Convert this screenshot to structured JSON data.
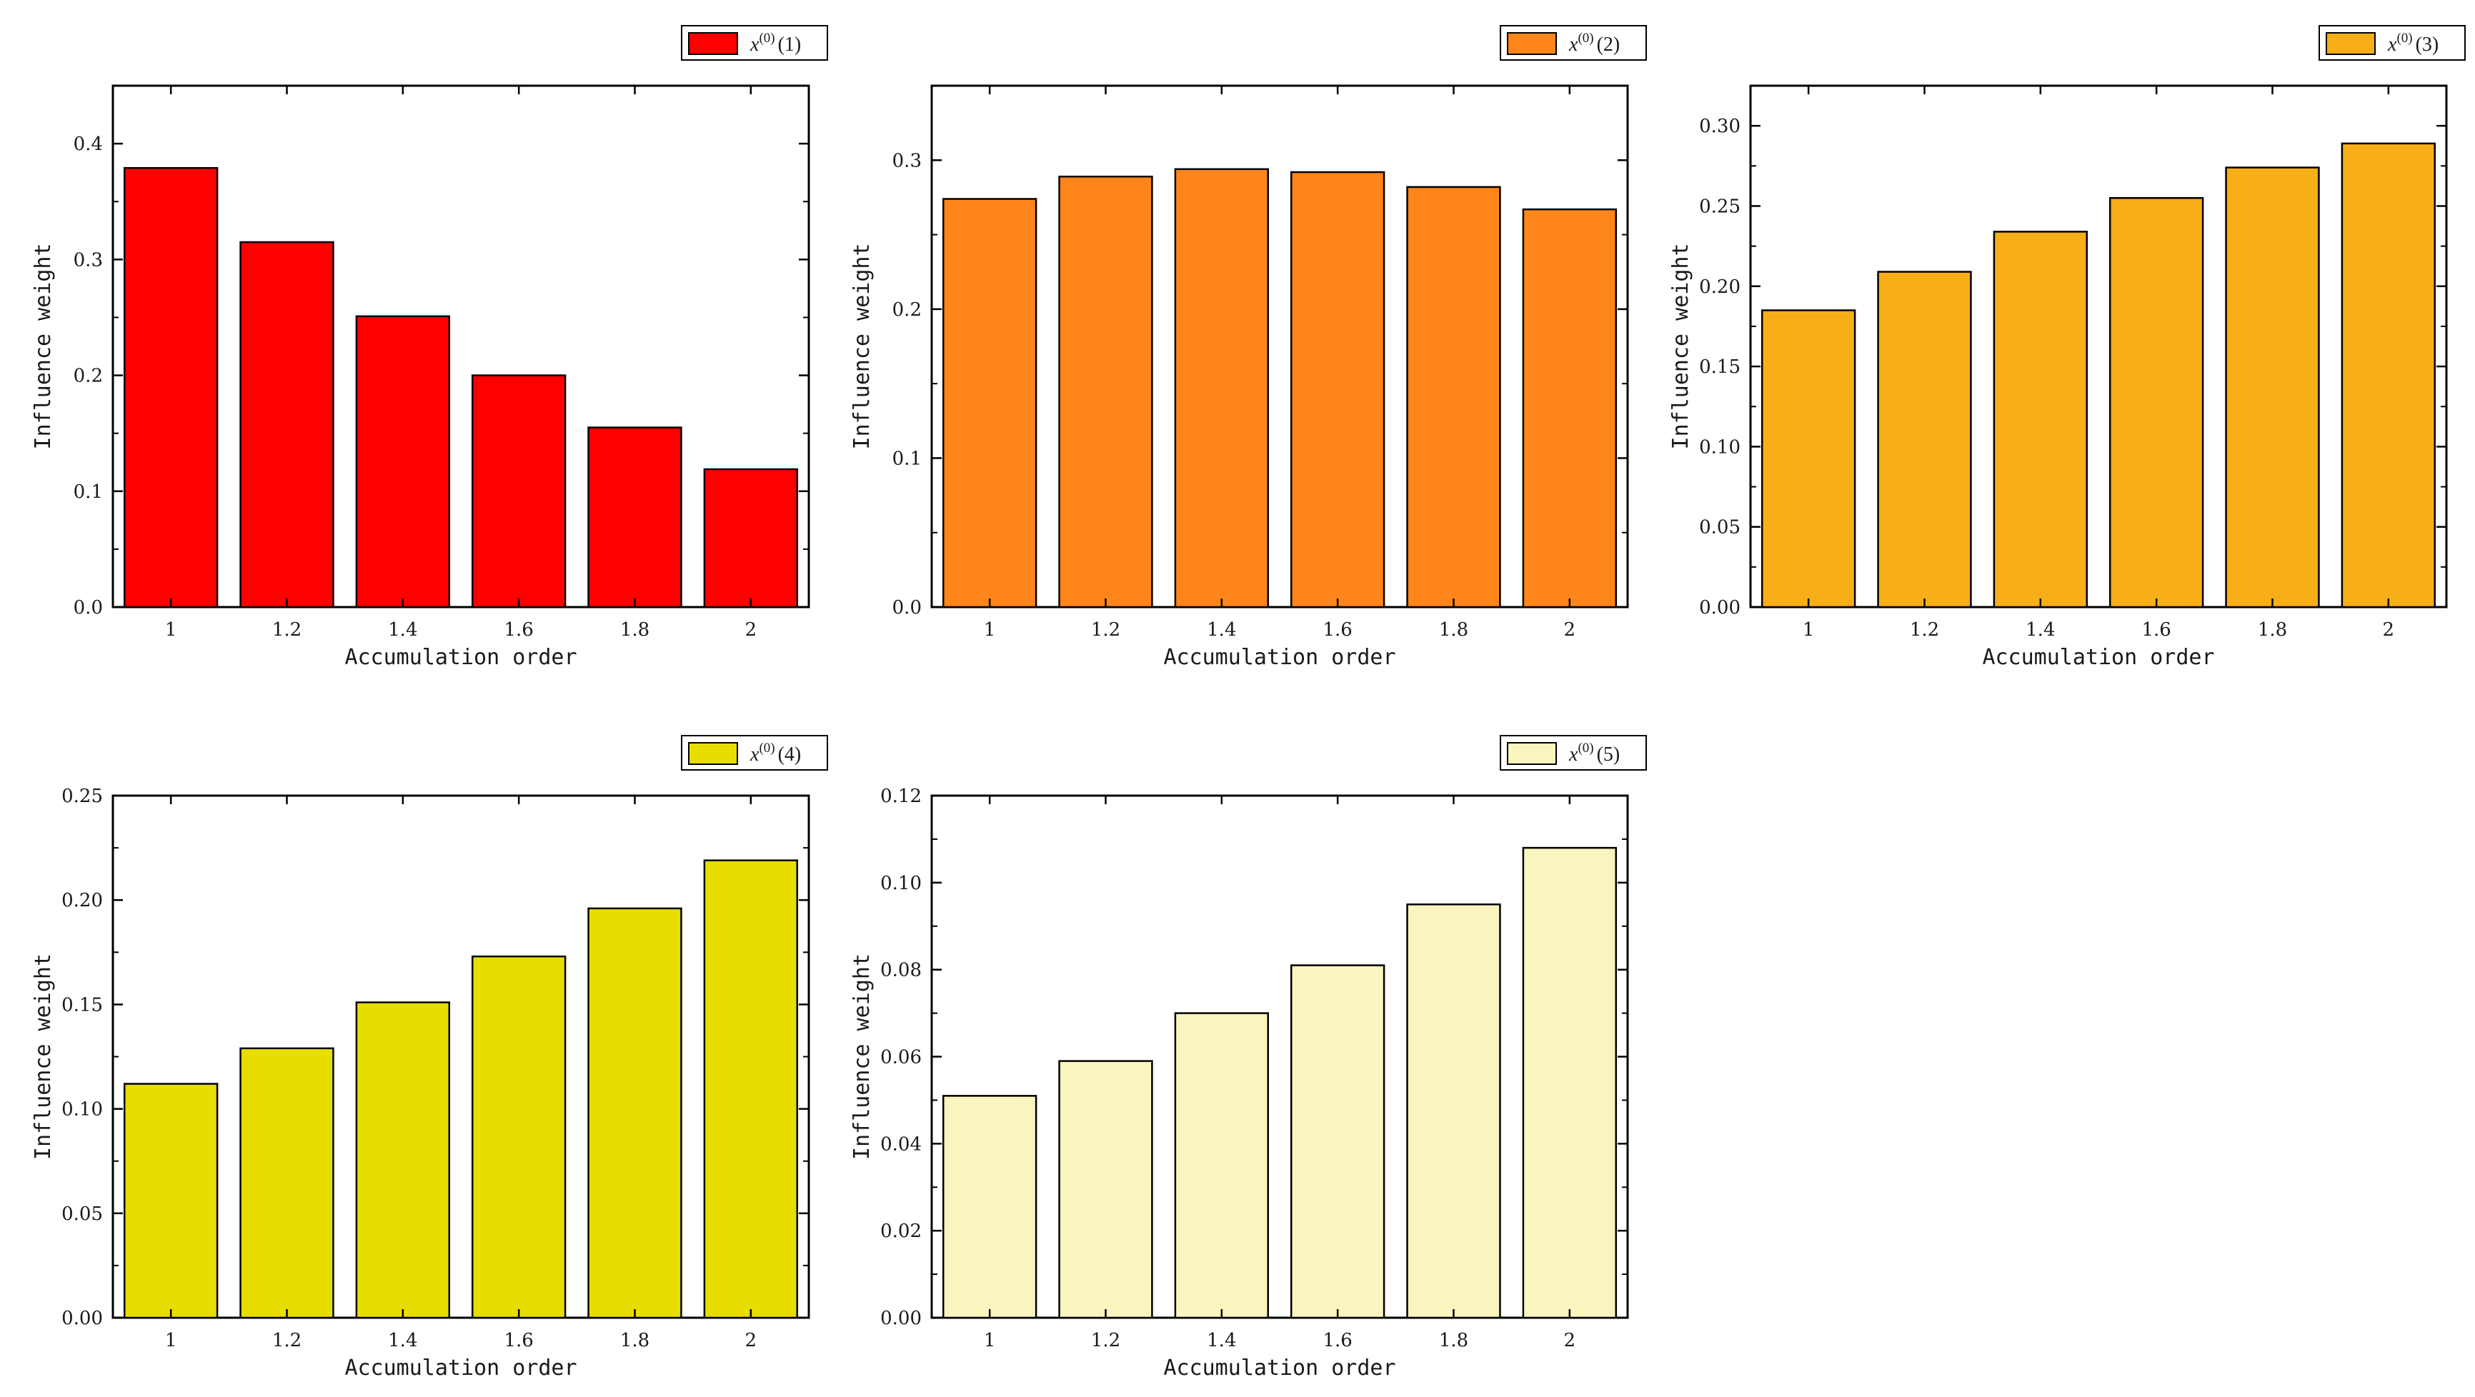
{
  "chart_data": [
    {
      "type": "bar",
      "series_name": "x(0)(1)",
      "legend": {
        "var": "x",
        "sup": "(0)",
        "index": "(1)"
      },
      "color": "#ff0000",
      "categories": [
        "1",
        "1.2",
        "1.4",
        "1.6",
        "1.8",
        "2"
      ],
      "values": [
        0.379,
        0.315,
        0.251,
        0.2,
        0.155,
        0.119
      ],
      "xlabel": "Accumulation order",
      "ylabel": "Influence weight",
      "ylim": [
        0,
        0.45
      ],
      "yticks": [
        "0.0",
        "0.1",
        "0.2",
        "0.3",
        "0.4"
      ],
      "ytick_values": [
        0,
        0.1,
        0.2,
        0.3,
        0.4
      ]
    },
    {
      "type": "bar",
      "series_name": "x(0)(2)",
      "legend": {
        "var": "x",
        "sup": "(0)",
        "index": "(2)"
      },
      "color": "#fe8519",
      "categories": [
        "1",
        "1.2",
        "1.4",
        "1.6",
        "1.8",
        "2"
      ],
      "values": [
        0.274,
        0.289,
        0.294,
        0.292,
        0.282,
        0.267
      ],
      "xlabel": "Accumulation order",
      "ylabel": "Influence weight",
      "ylim": [
        0,
        0.35
      ],
      "yticks": [
        "0.0",
        "0.1",
        "0.2",
        "0.3"
      ],
      "ytick_values": [
        0,
        0.1,
        0.2,
        0.3
      ]
    },
    {
      "type": "bar",
      "series_name": "x(0)(3)",
      "legend": {
        "var": "x",
        "sup": "(0)",
        "index": "(3)"
      },
      "color": "#f8ae16",
      "categories": [
        "1",
        "1.2",
        "1.4",
        "1.6",
        "1.8",
        "2"
      ],
      "values": [
        0.185,
        0.209,
        0.234,
        0.255,
        0.274,
        0.289
      ],
      "xlabel": "Accumulation order",
      "ylabel": "Influence weight",
      "ylim": [
        0,
        0.325
      ],
      "yticks": [
        "0.00",
        "0.05",
        "0.10",
        "0.15",
        "0.20",
        "0.25",
        "0.30"
      ],
      "ytick_values": [
        0,
        0.05,
        0.1,
        0.15,
        0.2,
        0.25,
        0.3
      ]
    },
    {
      "type": "bar",
      "series_name": "x(0)(4)",
      "legend": {
        "var": "x",
        "sup": "(0)",
        "index": "(4)"
      },
      "color": "#e8dd00",
      "categories": [
        "1",
        "1.2",
        "1.4",
        "1.6",
        "1.8",
        "2"
      ],
      "values": [
        0.112,
        0.129,
        0.151,
        0.173,
        0.196,
        0.219
      ],
      "xlabel": "Accumulation order",
      "ylabel": "Influence weight",
      "ylim": [
        0,
        0.25
      ],
      "yticks": [
        "0.00",
        "0.05",
        "0.10",
        "0.15",
        "0.20",
        "0.25"
      ],
      "ytick_values": [
        0,
        0.05,
        0.1,
        0.15,
        0.2,
        0.25
      ]
    },
    {
      "type": "bar",
      "series_name": "x(0)(5)",
      "legend": {
        "var": "x",
        "sup": "(0)",
        "index": "(5)"
      },
      "color": "#faf4bf",
      "categories": [
        "1",
        "1.2",
        "1.4",
        "1.6",
        "1.8",
        "2"
      ],
      "values": [
        0.051,
        0.059,
        0.07,
        0.081,
        0.095,
        0.108
      ],
      "xlabel": "Accumulation order",
      "ylabel": "Influence weight",
      "ylim": [
        0,
        0.12
      ],
      "yticks": [
        "0.00",
        "0.02",
        "0.04",
        "0.06",
        "0.08",
        "0.10",
        "0.12"
      ],
      "ytick_values": [
        0,
        0.02,
        0.04,
        0.06,
        0.08,
        0.1,
        0.12
      ]
    }
  ]
}
